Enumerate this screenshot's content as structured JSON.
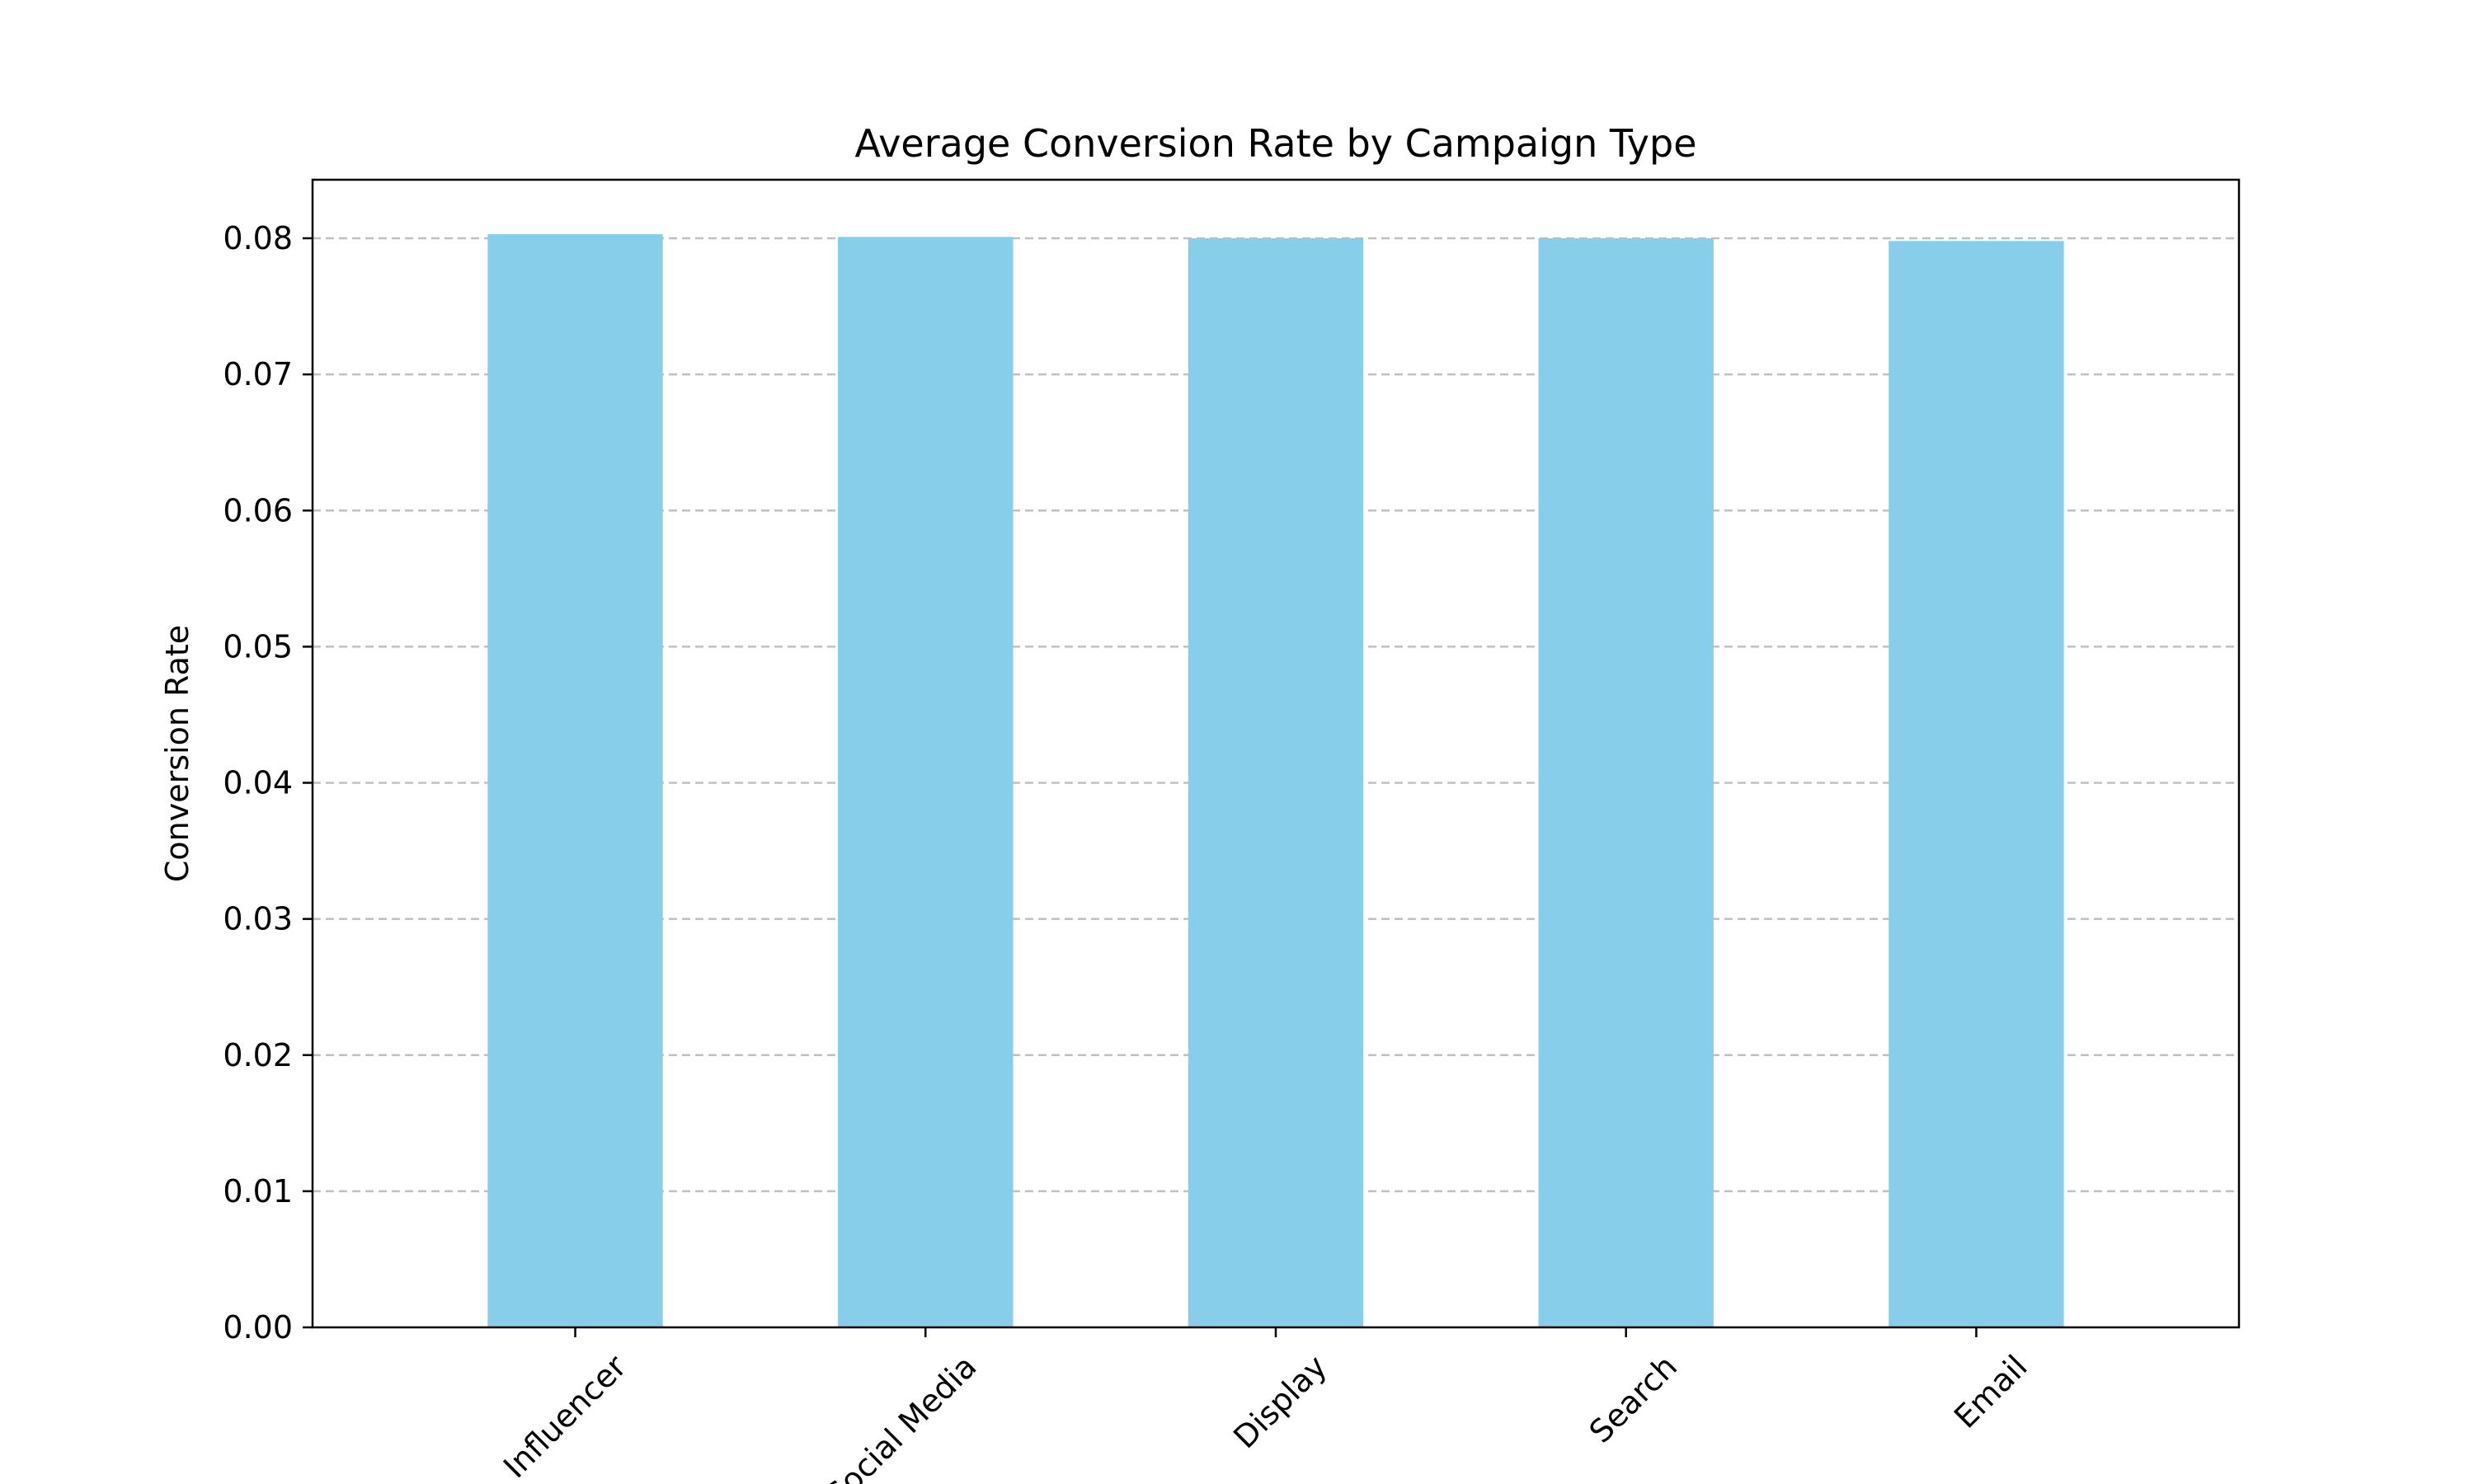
{
  "chart_data": {
    "type": "bar",
    "title": "Average Conversion Rate by Campaign Type",
    "xlabel": "",
    "ylabel": "Conversion Rate",
    "categories": [
      "Influencer",
      "Social Media",
      "Display",
      "Search",
      "Email"
    ],
    "values": [
      0.0803,
      0.0801,
      0.08,
      0.08,
      0.0798
    ],
    "ylim": [
      0,
      0.0843
    ],
    "yticks": [
      "0.00",
      "0.01",
      "0.02",
      "0.03",
      "0.04",
      "0.05",
      "0.06",
      "0.07",
      "0.08"
    ],
    "ytick_values": [
      0,
      0.01,
      0.02,
      0.03,
      0.04,
      0.05,
      0.06,
      0.07,
      0.08
    ],
    "grid": "y-dashed",
    "bar_color": "#87ceeb",
    "grid_color": "#c0c0c0",
    "legend": "none"
  }
}
